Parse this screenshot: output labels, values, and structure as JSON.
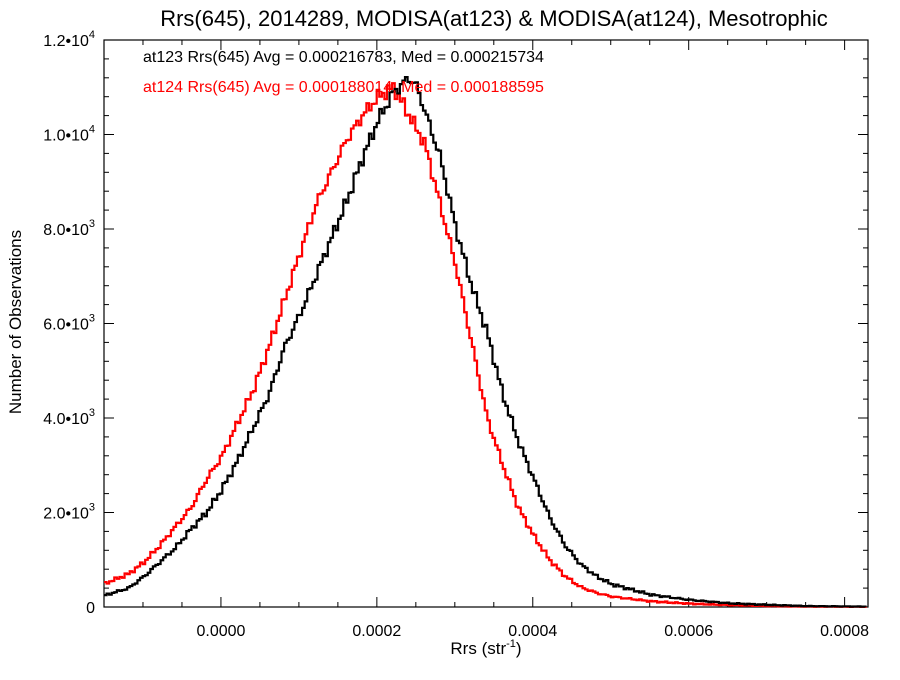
{
  "chart_data": {
    "type": "line",
    "title": "Rrs(645), 2014289, MODISA(at123) & MODISA(at124), Mesotrophic",
    "xlabel": "Rrs (str",
    "xlabel_sup": "-1",
    "xlabel_close": ")",
    "ylabel": "Number of Observations",
    "xlim": [
      -0.00015,
      0.00083
    ],
    "ylim": [
      0,
      12000
    ],
    "grid": false,
    "legend_position": "top-left",
    "x_ticks": [
      {
        "value": 0.0,
        "label": "0.0000"
      },
      {
        "value": 0.0002,
        "label": "0.0002"
      },
      {
        "value": 0.0004,
        "label": "0.0004"
      },
      {
        "value": 0.0006,
        "label": "0.0006"
      },
      {
        "value": 0.0008,
        "label": "0.0008"
      }
    ],
    "y_ticks": [
      {
        "value": 0,
        "mant": "0",
        "exp": ""
      },
      {
        "value": 2000,
        "mant": "2.0•10",
        "exp": "3"
      },
      {
        "value": 4000,
        "mant": "4.0•10",
        "exp": "3"
      },
      {
        "value": 6000,
        "mant": "6.0•10",
        "exp": "3"
      },
      {
        "value": 8000,
        "mant": "8.0•10",
        "exp": "3"
      },
      {
        "value": 10000,
        "mant": "1.0•10",
        "exp": "4"
      },
      {
        "value": 12000,
        "mant": "1.2•10",
        "exp": "4"
      }
    ],
    "series": [
      {
        "name": "at123",
        "color": "#000000",
        "legend_text": "at123 Rrs(645) Avg = 0.000216783, Med = 0.000215734",
        "points": [
          [
            -0.00015,
            250
          ],
          [
            -0.00012,
            400
          ],
          [
            -0.0001,
            650
          ],
          [
            -8e-05,
            950
          ],
          [
            -6e-05,
            1250
          ],
          [
            -4e-05,
            1650
          ],
          [
            -2e-05,
            2000
          ],
          [
            0.0,
            2500
          ],
          [
            2e-05,
            3100
          ],
          [
            4e-05,
            3800
          ],
          [
            6e-05,
            4500
          ],
          [
            8e-05,
            5500
          ],
          [
            0.0001,
            6200
          ],
          [
            0.00012,
            7000
          ],
          [
            0.00014,
            7800
          ],
          [
            0.00016,
            8600
          ],
          [
            0.00018,
            9500
          ],
          [
            0.0002,
            10300
          ],
          [
            0.00022,
            10900
          ],
          [
            0.00024,
            11200
          ],
          [
            0.00025,
            11000
          ],
          [
            0.00026,
            10500
          ],
          [
            0.00028,
            9500
          ],
          [
            0.0003,
            8000
          ],
          [
            0.00032,
            6800
          ],
          [
            0.00034,
            5800
          ],
          [
            0.00036,
            4500
          ],
          [
            0.00038,
            3500
          ],
          [
            0.0004,
            2700
          ],
          [
            0.00042,
            1900
          ],
          [
            0.00044,
            1300
          ],
          [
            0.00046,
            900
          ],
          [
            0.00048,
            650
          ],
          [
            0.0005,
            480
          ],
          [
            0.00055,
            260
          ],
          [
            0.0006,
            150
          ],
          [
            0.00065,
            80
          ],
          [
            0.0007,
            45
          ],
          [
            0.00075,
            20
          ],
          [
            0.00083,
            8
          ]
        ]
      },
      {
        "name": "at124",
        "color": "#ff0000",
        "legend_text": "at124 Rrs(645) Avg = 0.000188014, Med = 0.000188595",
        "points": [
          [
            -0.00015,
            500
          ],
          [
            -0.00012,
            700
          ],
          [
            -0.0001,
            950
          ],
          [
            -8e-05,
            1300
          ],
          [
            -6e-05,
            1700
          ],
          [
            -4e-05,
            2100
          ],
          [
            -2e-05,
            2700
          ],
          [
            0.0,
            3200
          ],
          [
            2e-05,
            3900
          ],
          [
            4e-05,
            4600
          ],
          [
            6e-05,
            5500
          ],
          [
            8e-05,
            6500
          ],
          [
            0.0001,
            7500
          ],
          [
            0.00012,
            8500
          ],
          [
            0.00014,
            9200
          ],
          [
            0.00016,
            9900
          ],
          [
            0.00018,
            10400
          ],
          [
            0.0002,
            10800
          ],
          [
            0.00022,
            11000
          ],
          [
            0.00024,
            10400
          ],
          [
            0.00026,
            9800
          ],
          [
            0.00028,
            8500
          ],
          [
            0.0003,
            7200
          ],
          [
            0.00032,
            5600
          ],
          [
            0.00034,
            4000
          ],
          [
            0.00036,
            3000
          ],
          [
            0.00038,
            2100
          ],
          [
            0.0004,
            1500
          ],
          [
            0.00042,
            1000
          ],
          [
            0.00044,
            650
          ],
          [
            0.00046,
            420
          ],
          [
            0.00048,
            300
          ],
          [
            0.0005,
            220
          ],
          [
            0.00055,
            120
          ],
          [
            0.0006,
            70
          ],
          [
            0.00065,
            40
          ],
          [
            0.0007,
            20
          ],
          [
            0.00075,
            10
          ],
          [
            0.00083,
            4
          ]
        ]
      }
    ]
  }
}
